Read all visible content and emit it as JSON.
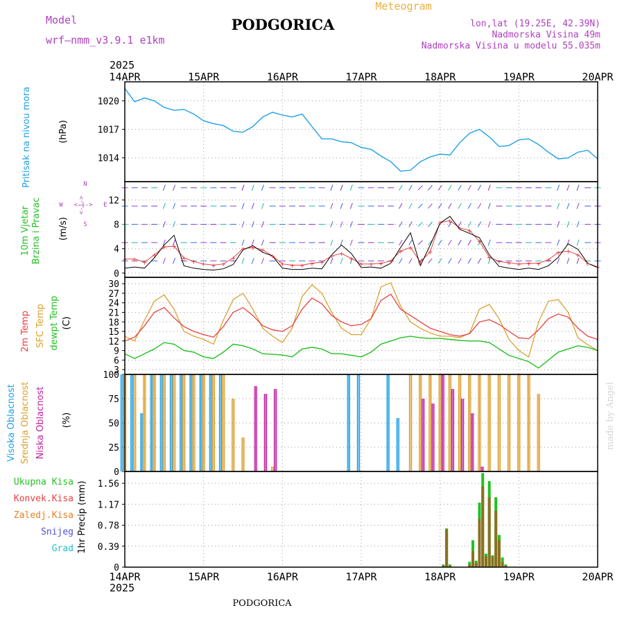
{
  "header": {
    "model_label": "Model",
    "model_name": "wrf—nmm_v3.9.1 e1km",
    "station": "PODGORICA",
    "product": "Meteogram",
    "coords": "lon,lat (19.25E, 42.39N)",
    "elevation": "Nadmorska Visina 49m",
    "model_elevation": "Nadmorska Visina u modelu 55.035m",
    "credit": "made by Angel",
    "footer_station": "PODGORICA"
  },
  "time_axis": {
    "year": "2025",
    "labels": [
      "14APR",
      "15APR",
      "16APR",
      "17APR",
      "18APR",
      "19APR",
      "20APR"
    ]
  },
  "colors": {
    "pressure": "#1ea0e6",
    "temp2m": "#e84040",
    "sfc_temp": "#dca030",
    "dewpoint": "#22c022",
    "wind_speed": "#000000",
    "gust": "#e84040",
    "high_cloud": "#1ea0e6",
    "mid_cloud": "#dca030",
    "low_cloud": "#c020a0",
    "total_precip": "#22c022",
    "conv_precip": "#e84040",
    "frozen_precip": "#e88020",
    "snow": "#5050e0",
    "hail": "#20c0c0",
    "product": "#e8b040",
    "meta_text": "#b040c0"
  },
  "panels": {
    "pressure": {
      "title": "Pritisak na nivou mora",
      "unit": "(hPa)",
      "ticks": [
        "1020",
        "1017",
        "1014"
      ]
    },
    "wind": {
      "title_line1": "10m Vjetar",
      "title_line2": "Brzina i Pravac",
      "unit": "(m/s)",
      "ticks": [
        "12",
        "8",
        "4",
        "0"
      ],
      "compass_n": "N",
      "compass_s": "S",
      "compass_w": "W",
      "compass_e": "E",
      "compass_arrows": "<-|->"
    },
    "temperature": {
      "label_2m": "2m Temp",
      "label_sfc": "SFC Temp",
      "label_dew": "dewpt Temp",
      "unit": "(C)",
      "ticks": [
        "30",
        "27",
        "24",
        "21",
        "18",
        "15",
        "12",
        "9",
        "6",
        "3"
      ]
    },
    "cloud": {
      "label_high": "Visoka Oblacnost",
      "label_mid": "Srednja Oblacnost",
      "label_low": "Niska Oblacnost",
      "unit": "(%)",
      "ticks": [
        "100",
        "75",
        "50",
        "25",
        "0"
      ]
    },
    "precip": {
      "axis_label": "1hr Precip (mm)",
      "ticks": [
        "1.56",
        "1.17",
        "0.78",
        "0.39",
        "0"
      ],
      "legend": [
        "Ukupna Kisa",
        "Konvek.Kisa",
        "Zaledj.Kisa",
        "Snijeg",
        "Grad"
      ]
    }
  },
  "chart_data": [
    {
      "type": "line",
      "ylabel": "(hPa)",
      "ylim": [
        1011.5,
        1022
      ],
      "x_hours": [
        0,
        3,
        6,
        9,
        12,
        15,
        18,
        21,
        24,
        27,
        30,
        33,
        36,
        39,
        42,
        45,
        48,
        51,
        54,
        57,
        60,
        63,
        66,
        69,
        72,
        75,
        78,
        81,
        84,
        87,
        90,
        93,
        96,
        99,
        102,
        105,
        108,
        111,
        114,
        117,
        120,
        123,
        126,
        129,
        132,
        135,
        138,
        141,
        144
      ],
      "series": [
        {
          "values": [
            1021.3,
            1019.9,
            1020.3,
            1020.0,
            1019.3,
            1019.0,
            1019.1,
            1018.6,
            1017.9,
            1017.6,
            1017.4,
            1016.8,
            1016.7,
            1017.3,
            1018.3,
            1018.8,
            1018.5,
            1018.3,
            1018.6,
            1017.3,
            1016.0,
            1016.0,
            1015.7,
            1015.6,
            1015.1,
            1014.9,
            1014.2,
            1013.6,
            1012.6,
            1012.7,
            1013.6,
            1014.1,
            1014.4,
            1014.3,
            1015.6,
            1016.6,
            1017.0,
            1016.2,
            1015.2,
            1015.3,
            1015.9,
            1016.0,
            1015.4,
            1014.6,
            1013.9,
            1014.0,
            1014.6,
            1014.8,
            1013.9
          ]
        }
      ]
    },
    {
      "type": "line",
      "ylabel": "(m/s)",
      "ylim": [
        -0.7,
        15
      ],
      "x_hours": [
        0,
        3,
        6,
        9,
        12,
        15,
        18,
        21,
        24,
        27,
        30,
        33,
        36,
        39,
        42,
        45,
        48,
        51,
        54,
        57,
        60,
        63,
        66,
        69,
        72,
        75,
        78,
        81,
        84,
        87,
        90,
        93,
        96,
        99,
        102,
        105,
        108,
        111,
        114,
        117,
        120,
        123,
        126,
        129,
        132,
        135,
        138,
        141,
        144
      ],
      "series": [
        {
          "name": "speed",
          "values": [
            0.8,
            1.0,
            0.8,
            2.5,
            4.6,
            6.2,
            1.2,
            0.8,
            0.6,
            0.5,
            0.7,
            1.4,
            3.8,
            4.5,
            3.4,
            2.8,
            0.8,
            0.6,
            0.6,
            0.8,
            0.7,
            3.0,
            4.6,
            3.2,
            0.9,
            1.0,
            0.8,
            1.6,
            4.2,
            6.6,
            1.2,
            4.6,
            8.2,
            9.3,
            7.2,
            6.5,
            5.8,
            3.0,
            1.1,
            0.8,
            0.6,
            0.8,
            0.6,
            1.2,
            2.6,
            4.8,
            3.9,
            1.6,
            0.9
          ]
        },
        {
          "name": "gust",
          "values": [
            2.3,
            2.3,
            1.8,
            3.0,
            4.3,
            4.4,
            2.5,
            1.9,
            1.5,
            1.3,
            1.5,
            2.5,
            4.0,
            4.2,
            3.8,
            2.8,
            1.5,
            1.3,
            1.3,
            1.6,
            1.8,
            2.8,
            3.2,
            2.4,
            1.5,
            1.5,
            1.6,
            2.0,
            3.6,
            4.2,
            1.8,
            3.5,
            8.3,
            8.6,
            7.4,
            7.0,
            5.2,
            2.6,
            1.9,
            1.7,
            1.5,
            1.6,
            1.6,
            2.2,
            3.4,
            3.6,
            3.0,
            1.6,
            1.0
          ]
        }
      ],
      "wind_direction_deg": [
        90,
        90,
        90,
        90,
        200,
        200,
        90,
        90,
        90,
        90,
        90,
        90,
        200,
        200,
        200,
        90,
        90,
        90,
        90,
        90,
        90,
        200,
        200,
        200,
        90,
        90,
        90,
        90,
        210,
        210,
        45,
        40,
        35,
        30,
        30,
        30,
        210,
        200,
        90,
        90,
        90,
        90,
        90,
        90,
        200,
        200,
        200,
        90,
        90
      ]
    },
    {
      "type": "line",
      "ylabel": "(C)",
      "ylim": [
        1.5,
        32
      ],
      "x_hours": [
        0,
        3,
        6,
        9,
        12,
        15,
        18,
        21,
        24,
        27,
        30,
        33,
        36,
        39,
        42,
        45,
        48,
        51,
        54,
        57,
        60,
        63,
        66,
        69,
        72,
        75,
        78,
        81,
        84,
        87,
        90,
        93,
        96,
        99,
        102,
        105,
        108,
        111,
        114,
        117,
        120,
        123,
        126,
        129,
        132,
        135,
        138,
        141,
        144
      ],
      "series": [
        {
          "name": "2m Temp",
          "values": [
            12.0,
            13.2,
            16.8,
            21.0,
            22.5,
            19.3,
            16.5,
            15.0,
            14.0,
            13.2,
            16.5,
            21.0,
            22.5,
            20.0,
            16.8,
            15.5,
            15.0,
            16.8,
            22.0,
            25.5,
            23.7,
            20.0,
            18.0,
            16.8,
            17.2,
            19.0,
            24.7,
            26.7,
            22.0,
            20.0,
            18.0,
            16.0,
            15.0,
            14.0,
            13.5,
            14.3,
            18.0,
            18.7,
            17.2,
            15.0,
            13.0,
            12.7,
            15.5,
            19.0,
            20.5,
            19.5,
            16.0,
            13.5,
            12.5
          ]
        },
        {
          "name": "SFC Temp",
          "values": [
            13.5,
            12.0,
            18.5,
            24.5,
            26.5,
            22.0,
            15.0,
            13.5,
            12.5,
            11.0,
            18.5,
            25.0,
            27.0,
            22.0,
            16.0,
            13.5,
            11.5,
            16.0,
            26.0,
            29.7,
            27.0,
            21.0,
            16.0,
            14.0,
            14.0,
            19.0,
            29.0,
            30.3,
            23.0,
            18.0,
            16.0,
            14.5,
            13.5,
            13.5,
            13.0,
            14.5,
            22.0,
            23.5,
            19.0,
            12.5,
            9.0,
            7.0,
            18.0,
            24.5,
            25.0,
            21.0,
            13.0,
            10.8,
            9.0
          ]
        },
        {
          "name": "dewpt Temp",
          "values": [
            8.0,
            6.5,
            8.0,
            9.5,
            11.5,
            11.0,
            9.0,
            8.5,
            7.0,
            6.5,
            8.5,
            11.0,
            10.5,
            9.5,
            8.0,
            7.8,
            7.6,
            7.0,
            9.5,
            10.0,
            9.5,
            8.0,
            8.0,
            7.5,
            7.0,
            8.5,
            11.0,
            12.0,
            13.0,
            13.5,
            13.0,
            12.8,
            12.8,
            12.5,
            12.2,
            12.0,
            12.0,
            11.5,
            9.5,
            7.5,
            6.5,
            5.5,
            3.5,
            6.0,
            8.5,
            9.5,
            10.5,
            10.0,
            9.0
          ]
        }
      ]
    },
    {
      "type": "bar",
      "ylabel": "(%)",
      "ylim": [
        0,
        100
      ],
      "x_hours": [
        0,
        3,
        6,
        9,
        12,
        15,
        18,
        21,
        24,
        27,
        30,
        33,
        36,
        39,
        42,
        45,
        48,
        51,
        54,
        57,
        60,
        63,
        66,
        69,
        72,
        75,
        78,
        81,
        84,
        87,
        90,
        93,
        96,
        99,
        102,
        105,
        108,
        111,
        114,
        117,
        120,
        123,
        126,
        129,
        132,
        135,
        138,
        141,
        144
      ],
      "series": [
        {
          "name": "Visoka Oblacnost",
          "values": [
            100,
            100,
            60,
            100,
            100,
            100,
            100,
            100,
            100,
            100,
            100,
            0,
            0,
            0,
            0,
            0,
            0,
            0,
            0,
            0,
            0,
            0,
            0,
            100,
            100,
            0,
            0,
            100,
            55,
            0,
            0,
            0,
            0,
            0,
            0,
            0,
            0,
            0,
            0,
            0,
            0,
            0,
            0,
            0,
            0,
            0,
            0,
            0,
            0
          ]
        },
        {
          "name": "Srednja Oblacnost",
          "values": [
            100,
            100,
            100,
            100,
            100,
            100,
            100,
            100,
            100,
            100,
            100,
            75,
            35,
            0,
            0,
            5,
            0,
            0,
            0,
            0,
            0,
            0,
            0,
            0,
            0,
            0,
            0,
            0,
            0,
            100,
            100,
            100,
            100,
            100,
            100,
            100,
            100,
            100,
            100,
            100,
            100,
            100,
            80,
            0,
            0,
            0,
            0,
            0,
            0
          ]
        },
        {
          "name": "Niska Oblacnost",
          "values": [
            0,
            0,
            0,
            0,
            0,
            0,
            0,
            0,
            0,
            0,
            0,
            0,
            0,
            88,
            80,
            85,
            0,
            0,
            0,
            0,
            0,
            0,
            0,
            0,
            0,
            0,
            0,
            0,
            0,
            0,
            75,
            70,
            100,
            85,
            75,
            60,
            5,
            0,
            0,
            0,
            0,
            0,
            0,
            0,
            0,
            0,
            0,
            0,
            0
          ]
        }
      ]
    },
    {
      "type": "bar",
      "ylabel": "1hr Precip (mm)",
      "ylim": [
        0,
        1.78
      ],
      "x_hours": [
        97,
        98,
        99,
        105,
        106,
        107,
        108,
        109,
        110,
        111,
        112,
        113,
        114,
        115,
        116,
        117,
        118,
        119
      ],
      "series": [
        {
          "name": "Ukupna Kisa",
          "values": [
            0.05,
            0.72,
            0.05,
            0.1,
            0.5,
            0.12,
            1.2,
            1.75,
            0.25,
            1.6,
            0.22,
            1.3,
            0.6,
            0.18,
            0.05,
            0,
            0,
            0
          ]
        },
        {
          "name": "Konvek.Kisa",
          "values": [
            0.03,
            0.7,
            0.03,
            0.05,
            0.3,
            0.08,
            0.9,
            1.5,
            0.2,
            1.3,
            0.2,
            1.05,
            0.5,
            0.1,
            0.03,
            0,
            0,
            0
          ]
        }
      ]
    }
  ]
}
